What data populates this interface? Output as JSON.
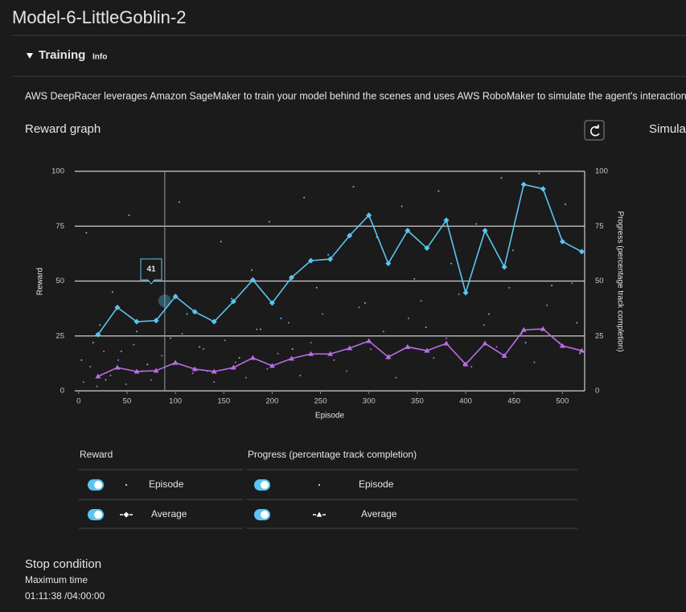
{
  "header": {
    "title": "Model-6-LittleGoblin-2"
  },
  "training": {
    "title": "Training",
    "info": "Info",
    "description": "AWS DeepRacer leverages Amazon SageMaker to train your model behind the scenes and uses AWS RoboMaker to simulate the agent's interaction with the",
    "graph_title": "Reward graph",
    "side_title": "Simula"
  },
  "chart_data": {
    "type": "scatter",
    "xlabel": "Episode",
    "ylabel": "Reward",
    "y2label": "Progress (percentage track completion)",
    "xlim": [
      -4,
      523
    ],
    "xticks": [
      0,
      50,
      100,
      150,
      200,
      250,
      300,
      350,
      400,
      450,
      500
    ],
    "ylim": [
      0,
      100
    ],
    "yticks": [
      0,
      25,
      50,
      75,
      100
    ],
    "y2lim": [
      0,
      100
    ],
    "y2ticks": [
      0,
      25,
      50,
      75,
      100
    ],
    "grid": true,
    "tooltip": {
      "x": 89,
      "value": 41
    },
    "series": [
      {
        "name": "Episode",
        "group": "Reward",
        "color": "#5bc4f0",
        "marker": "dot",
        "x": [
          3,
          8,
          15,
          22,
          28,
          35,
          44,
          52,
          60,
          71,
          83,
          95,
          104,
          112,
          125,
          133,
          147,
          158,
          166,
          179,
          188,
          197,
          209,
          221,
          233,
          246,
          258,
          271,
          284,
          296,
          308,
          321,
          334,
          347,
          359,
          372,
          385,
          398,
          411,
          424,
          437,
          449,
          462,
          476,
          489,
          503,
          515
        ],
        "values": [
          14,
          72,
          22,
          30,
          5,
          45,
          18,
          80,
          27,
          12,
          60,
          24,
          86,
          35,
          20,
          9,
          68,
          42,
          15,
          55,
          28,
          77,
          33,
          19,
          88,
          47,
          62,
          25,
          93,
          40,
          70,
          16,
          84,
          51,
          29,
          91,
          58,
          12,
          76,
          35,
          97,
          64,
          22,
          99,
          48,
          85,
          31
        ]
      },
      {
        "name": "Average",
        "group": "Reward",
        "color": "#5bc4f0",
        "marker": "diamond",
        "x": [
          20,
          40,
          60,
          80,
          100,
          120,
          140,
          160,
          180,
          200,
          220,
          240,
          260,
          280,
          300,
          320,
          340,
          360,
          380,
          400,
          420,
          440,
          460,
          480,
          500,
          520
        ],
        "values": [
          25.6,
          38,
          31.5,
          32,
          43,
          36,
          31.5,
          40.7,
          50.5,
          40,
          51.6,
          59.3,
          60,
          70.7,
          80,
          58,
          73,
          65,
          77.7,
          44.7,
          73,
          56.4,
          94,
          92,
          68,
          63.4
        ]
      },
      {
        "name": "Episode",
        "group": "Progress (percentage track completion)",
        "color": "#b86de8",
        "marker": "dot",
        "axis": "y2",
        "x": [
          5,
          12,
          19,
          26,
          33,
          41,
          49,
          57,
          66,
          75,
          86,
          98,
          107,
          118,
          129,
          140,
          151,
          162,
          173,
          184,
          195,
          206,
          217,
          229,
          240,
          252,
          264,
          277,
          290,
          302,
          315,
          328,
          341,
          354,
          367,
          380,
          393,
          406,
          419,
          432,
          445,
          458,
          471,
          484,
          497,
          510,
          518
        ],
        "values": [
          4,
          11,
          2,
          18,
          7,
          14,
          3,
          21,
          9,
          5,
          16,
          12,
          26,
          8,
          19,
          4,
          23,
          13,
          6,
          28,
          10,
          17,
          31,
          7,
          22,
          35,
          14,
          9,
          38,
          19,
          27,
          6,
          33,
          41,
          15,
          24,
          44,
          11,
          30,
          20,
          47,
          26,
          13,
          39,
          22,
          49,
          17
        ]
      },
      {
        "name": "Average",
        "group": "Progress (percentage track completion)",
        "color": "#b86de8",
        "marker": "triangle",
        "axis": "y2",
        "x": [
          20,
          40,
          60,
          80,
          100,
          120,
          140,
          160,
          180,
          200,
          220,
          240,
          260,
          280,
          300,
          320,
          340,
          360,
          380,
          400,
          420,
          440,
          460,
          480,
          500,
          520
        ],
        "values": [
          6.6,
          10.6,
          8.8,
          9.2,
          12.8,
          9.9,
          8.8,
          10.6,
          15,
          11.4,
          14.7,
          16.8,
          16.8,
          19.4,
          22.7,
          15.4,
          20,
          18.3,
          21.6,
          12.1,
          21.6,
          16,
          27.8,
          28.2,
          20.5,
          18.3
        ]
      }
    ]
  },
  "stop_condition": {
    "title": "Stop condition",
    "label": "Maximum time",
    "value": "01:11:38 /04:00:00"
  }
}
